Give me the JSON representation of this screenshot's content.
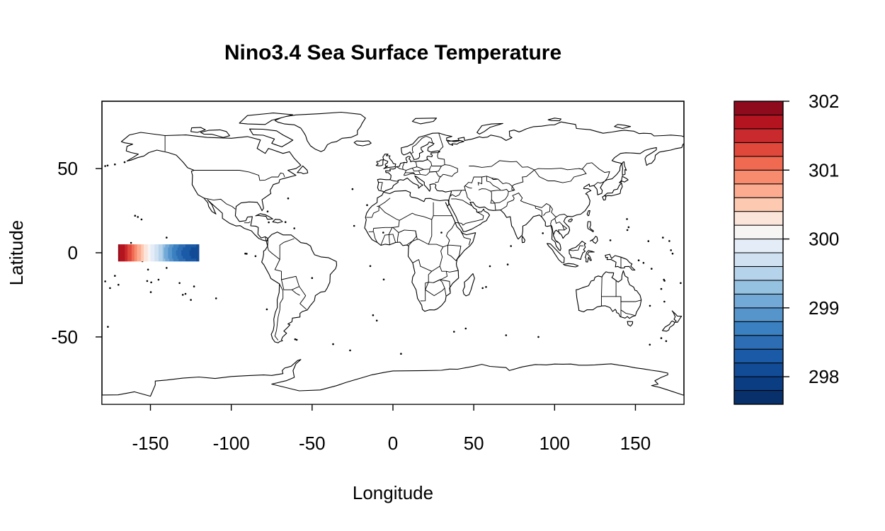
{
  "chart_data": {
    "type": "heatmap",
    "title": "Nino3.4 Sea Surface Temperature",
    "xlabel": "Longitude",
    "ylabel": "Latitude",
    "xlim": [
      -180,
      180
    ],
    "ylim": [
      -90,
      90
    ],
    "x_ticks": [
      -150,
      -100,
      -50,
      0,
      50,
      100,
      150
    ],
    "x_tick_labels": [
      "-150",
      "-100",
      "-50",
      "0",
      "50",
      "100",
      "150"
    ],
    "y_ticks": [
      -50,
      0,
      50
    ],
    "y_tick_labels": [
      "-50",
      "0",
      "50"
    ],
    "map_background": "world country outlines",
    "region": {
      "lon_range": [
        -170,
        -120
      ],
      "lat_range": [
        -5,
        5
      ],
      "sst_west_to_east": [
        301.9,
        301.5,
        301.0,
        300.5,
        300.0,
        299.6,
        299.2,
        298.8,
        298.5,
        298.3,
        298.2
      ]
    },
    "colorbar": {
      "range": [
        297.6,
        302.0
      ],
      "ticks": [
        298,
        299,
        300,
        301,
        302
      ],
      "tick_labels": [
        "298",
        "299",
        "300",
        "301",
        "302"
      ],
      "colors": [
        "#08306b",
        "#0b3d83",
        "#124b96",
        "#1a5aa6",
        "#2c6db4",
        "#3b80c0",
        "#5595cc",
        "#72a9d6",
        "#96c2e2",
        "#b5d3ea",
        "#d0e1f2",
        "#e4edf7",
        "#f7f4f4",
        "#fbe4da",
        "#fdc9b1",
        "#fcab90",
        "#f88a6e",
        "#f06a52",
        "#e0483c",
        "#c92a2d",
        "#b3141f",
        "#8e0b1d"
      ]
    }
  }
}
